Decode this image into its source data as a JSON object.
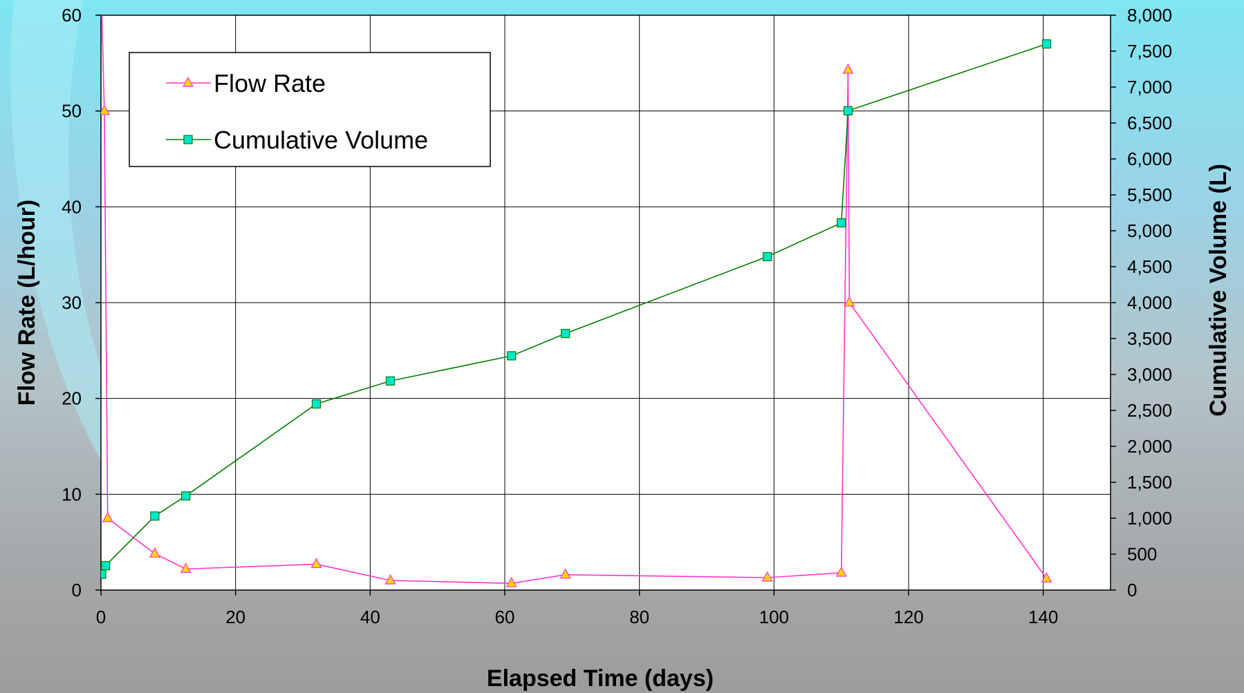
{
  "chart_data": {
    "type": "line",
    "title": "",
    "xlabel": "Elapsed Time (days)",
    "ylabel_left": "Flow Rate (L/hour)",
    "ylabel_right": "Cumulative Volume (L)",
    "xlim": [
      0,
      150
    ],
    "ylim_left": [
      0,
      60
    ],
    "ylim_right": [
      0,
      8000
    ],
    "x_ticks": [
      "0",
      "20",
      "40",
      "60",
      "80",
      "100",
      "120",
      "140"
    ],
    "y_left_ticks": [
      "0",
      "10",
      "20",
      "30",
      "40",
      "50",
      "60"
    ],
    "y_right_ticks": [
      "0",
      "500",
      "1,000",
      "1,500",
      "2,000",
      "2,500",
      "3,000",
      "3,500",
      "4,000",
      "4,500",
      "5,000",
      "5,500",
      "6,000",
      "6,500",
      "7,000",
      "7,500",
      "8,000"
    ],
    "grid": true,
    "legend_position": "top-left",
    "series": [
      {
        "name": "Flow Rate",
        "axis": "left",
        "color": "#ff33cc",
        "marker": "triangle",
        "marker_fill": "#ffd700",
        "x": [
          0.1,
          0.5,
          1,
          8,
          12.6,
          32,
          43,
          61,
          69,
          99,
          110,
          111,
          111.2,
          140.5
        ],
        "y": [
          61,
          50,
          7.5,
          3.8,
          2.2,
          2.7,
          1.0,
          0.7,
          1.6,
          1.3,
          1.8,
          54.3,
          30,
          1.2
        ]
      },
      {
        "name": "Cumulative Volume",
        "axis": "right",
        "color": "#008000",
        "marker": "square",
        "marker_fill": "#00e5cc",
        "x": [
          0.1,
          0.7,
          8,
          12.6,
          32,
          43,
          61,
          69,
          99,
          110,
          111,
          140.5
        ],
        "y": [
          220,
          340,
          1030,
          1310,
          2590,
          2910,
          3260,
          3570,
          4640,
          5110,
          6670,
          7600
        ]
      }
    ]
  }
}
